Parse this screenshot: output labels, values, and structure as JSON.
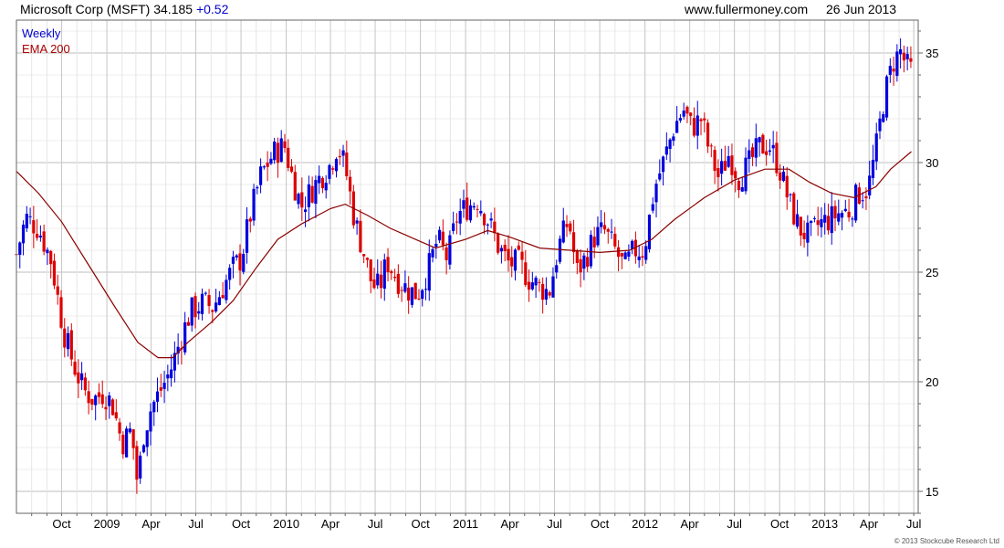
{
  "header": {
    "title": "Microsoft Corp (MSFT)",
    "price": "34.185",
    "change": "+0.52",
    "site": "www.fullermoney.com",
    "date": "26 Jun 2013"
  },
  "footer": {
    "copyright": "© 2013 Stockcube Research Ltd"
  },
  "colors": {
    "up": "#0000dd",
    "down": "#dd0000",
    "ema": "#8b0000",
    "grid": "#cccccc"
  },
  "chart_data": {
    "type": "candlestick",
    "frequency_label": "Weekly",
    "y_ticks": [
      15,
      20,
      25,
      30,
      35
    ],
    "ylim": [
      14.0,
      36.5
    ],
    "x_tick_labels": [
      "Oct",
      "2009",
      "Apr",
      "Jul",
      "Oct",
      "2010",
      "Apr",
      "Jul",
      "Oct",
      "2011",
      "Apr",
      "Jul",
      "Oct",
      "2012",
      "Apr",
      "Jul",
      "Oct",
      "2013",
      "Apr",
      "Jul"
    ],
    "x_range": [
      "2008-07-01",
      "2013-07-10"
    ],
    "grid": true,
    "legend_position": "top-left",
    "close_path": [
      [
        "2008-07-01",
        25.8
      ],
      [
        "2008-07-20",
        27.5
      ],
      [
        "2008-08-15",
        27.0
      ],
      [
        "2008-09-10",
        25.5
      ],
      [
        "2008-10-05",
        22.3
      ],
      [
        "2008-10-25",
        20.8
      ],
      [
        "2008-11-15",
        19.6
      ],
      [
        "2008-12-05",
        19.2
      ],
      [
        "2008-12-25",
        19.5
      ],
      [
        "2009-01-12",
        19.0
      ],
      [
        "2009-02-01",
        17.2
      ],
      [
        "2009-02-20",
        17.8
      ],
      [
        "2009-03-05",
        15.2
      ],
      [
        "2009-03-15",
        17.5
      ],
      [
        "2009-04-01",
        18.8
      ],
      [
        "2009-04-20",
        19.6
      ],
      [
        "2009-05-10",
        20.5
      ],
      [
        "2009-06-01",
        22.0
      ],
      [
        "2009-06-20",
        23.2
      ],
      [
        "2009-07-15",
        23.6
      ],
      [
        "2009-08-05",
        23.4
      ],
      [
        "2009-08-25",
        24.3
      ],
      [
        "2009-09-15",
        25.2
      ],
      [
        "2009-10-01",
        25.6
      ],
      [
        "2009-10-20",
        27.6
      ],
      [
        "2009-11-10",
        29.4
      ],
      [
        "2009-12-05",
        30.4
      ],
      [
        "2009-12-28",
        30.8
      ],
      [
        "2010-01-15",
        29.2
      ],
      [
        "2010-02-01",
        28.0
      ],
      [
        "2010-02-20",
        28.7
      ],
      [
        "2010-03-10",
        29.3
      ],
      [
        "2010-04-01",
        29.9
      ],
      [
        "2010-04-15",
        30.8
      ],
      [
        "2010-05-01",
        29.8
      ],
      [
        "2010-05-20",
        27.4
      ],
      [
        "2010-06-10",
        25.7
      ],
      [
        "2010-06-25",
        24.4
      ],
      [
        "2010-07-10",
        24.3
      ],
      [
        "2010-07-25",
        25.5
      ],
      [
        "2010-08-15",
        24.7
      ],
      [
        "2010-09-05",
        24.2
      ],
      [
        "2010-09-25",
        24.0
      ],
      [
        "2010-10-15",
        25.0
      ],
      [
        "2010-11-05",
        26.5
      ],
      [
        "2010-11-25",
        25.6
      ],
      [
        "2010-12-15",
        27.6
      ],
      [
        "2011-01-05",
        28.0
      ],
      [
        "2011-01-25",
        28.3
      ],
      [
        "2011-02-15",
        27.4
      ],
      [
        "2011-03-10",
        26.1
      ],
      [
        "2011-03-30",
        25.4
      ],
      [
        "2011-04-20",
        25.4
      ],
      [
        "2011-05-10",
        24.7
      ],
      [
        "2011-06-01",
        24.3
      ],
      [
        "2011-06-20",
        24.1
      ],
      [
        "2011-07-10",
        26.2
      ],
      [
        "2011-07-30",
        27.4
      ],
      [
        "2011-08-15",
        25.0
      ],
      [
        "2011-09-01",
        25.6
      ],
      [
        "2011-09-20",
        26.6
      ],
      [
        "2011-10-10",
        26.9
      ],
      [
        "2011-10-30",
        26.1
      ],
      [
        "2011-11-20",
        25.2
      ],
      [
        "2011-12-10",
        26.0
      ],
      [
        "2011-12-30",
        26.0
      ],
      [
        "2012-01-20",
        28.8
      ],
      [
        "2012-02-10",
        30.2
      ],
      [
        "2012-03-01",
        31.7
      ],
      [
        "2012-03-20",
        32.4
      ],
      [
        "2012-04-05",
        31.6
      ],
      [
        "2012-04-25",
        32.0
      ],
      [
        "2012-05-10",
        30.6
      ],
      [
        "2012-05-30",
        29.3
      ],
      [
        "2012-06-20",
        30.4
      ],
      [
        "2012-07-10",
        29.3
      ],
      [
        "2012-07-30",
        29.9
      ],
      [
        "2012-08-20",
        30.7
      ],
      [
        "2012-09-10",
        30.8
      ],
      [
        "2012-09-30",
        29.8
      ],
      [
        "2012-10-20",
        28.2
      ],
      [
        "2012-11-10",
        27.0
      ],
      [
        "2012-11-30",
        26.6
      ],
      [
        "2012-12-20",
        27.2
      ],
      [
        "2013-01-10",
        27.4
      ],
      [
        "2013-01-30",
        27.7
      ],
      [
        "2013-02-20",
        27.8
      ],
      [
        "2013-03-10",
        28.6
      ],
      [
        "2013-03-30",
        28.8
      ],
      [
        "2013-04-15",
        30.6
      ],
      [
        "2013-05-01",
        32.9
      ],
      [
        "2013-05-20",
        34.6
      ],
      [
        "2013-06-05",
        35.1
      ],
      [
        "2013-06-15",
        34.4
      ],
      [
        "2013-06-26",
        34.2
      ]
    ],
    "series": [
      {
        "name": "EMA 200",
        "points": [
          [
            "2008-07-01",
            29.6
          ],
          [
            "2008-08-15",
            28.6
          ],
          [
            "2008-10-01",
            27.3
          ],
          [
            "2008-11-20",
            25.5
          ],
          [
            "2009-01-15",
            23.5
          ],
          [
            "2009-03-05",
            21.8
          ],
          [
            "2009-04-15",
            21.1
          ],
          [
            "2009-05-15",
            21.1
          ],
          [
            "2009-06-15",
            21.8
          ],
          [
            "2009-08-01",
            22.7
          ],
          [
            "2009-09-15",
            23.7
          ],
          [
            "2009-11-01",
            25.2
          ],
          [
            "2009-12-15",
            26.5
          ],
          [
            "2010-02-01",
            27.2
          ],
          [
            "2010-04-01",
            27.9
          ],
          [
            "2010-05-01",
            28.1
          ],
          [
            "2010-06-15",
            27.6
          ],
          [
            "2010-08-01",
            27.0
          ],
          [
            "2010-10-01",
            26.4
          ],
          [
            "2010-11-01",
            26.1
          ],
          [
            "2011-01-01",
            26.5
          ],
          [
            "2011-02-15",
            26.9
          ],
          [
            "2011-04-01",
            26.6
          ],
          [
            "2011-06-01",
            26.1
          ],
          [
            "2011-08-01",
            26.0
          ],
          [
            "2011-10-01",
            25.9
          ],
          [
            "2011-12-01",
            26.0
          ],
          [
            "2012-01-15",
            26.5
          ],
          [
            "2012-03-01",
            27.4
          ],
          [
            "2012-05-01",
            28.4
          ],
          [
            "2012-07-01",
            29.2
          ],
          [
            "2012-09-01",
            29.7
          ],
          [
            "2012-10-20",
            29.7
          ],
          [
            "2012-12-01",
            29.1
          ],
          [
            "2013-01-15",
            28.6
          ],
          [
            "2013-03-01",
            28.4
          ],
          [
            "2013-04-15",
            28.9
          ],
          [
            "2013-05-15",
            29.7
          ],
          [
            "2013-06-26",
            30.5
          ]
        ]
      }
    ]
  }
}
